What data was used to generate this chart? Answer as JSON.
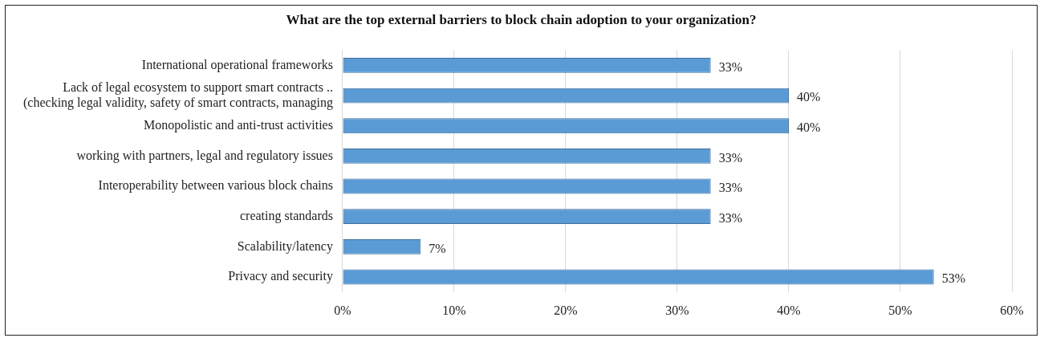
{
  "chart_data": {
    "type": "bar",
    "orientation": "horizontal",
    "title": "What are the top external barriers to block chain adoption to your organization?",
    "categories": [
      "International operational frameworks",
      "Lack of legal ecosystem to support smart contracts ..\n(checking legal validity, safety of smart contracts, managing",
      "Monopolistic and anti-trust activities",
      "working with partners, legal and regulatory issues",
      "Interoperability between various block chains",
      "creating standards",
      "Scalability/latency",
      "Privacy and security"
    ],
    "values": [
      33,
      40,
      40,
      33,
      33,
      33,
      7,
      53
    ],
    "value_labels": [
      "33%",
      "40%",
      "40%",
      "33%",
      "33%",
      "33%",
      "7%",
      "53%"
    ],
    "color": "#5b9bd5",
    "xlim": [
      0,
      60
    ],
    "xticks": [
      {
        "value": 0,
        "label": "0%"
      },
      {
        "value": 10,
        "label": "10%"
      },
      {
        "value": 20,
        "label": "20%"
      },
      {
        "value": 30,
        "label": "30%"
      },
      {
        "value": 40,
        "label": "40%"
      },
      {
        "value": 50,
        "label": "50%"
      },
      {
        "value": 60,
        "label": "60%"
      }
    ],
    "grid": "x",
    "legend": false
  }
}
